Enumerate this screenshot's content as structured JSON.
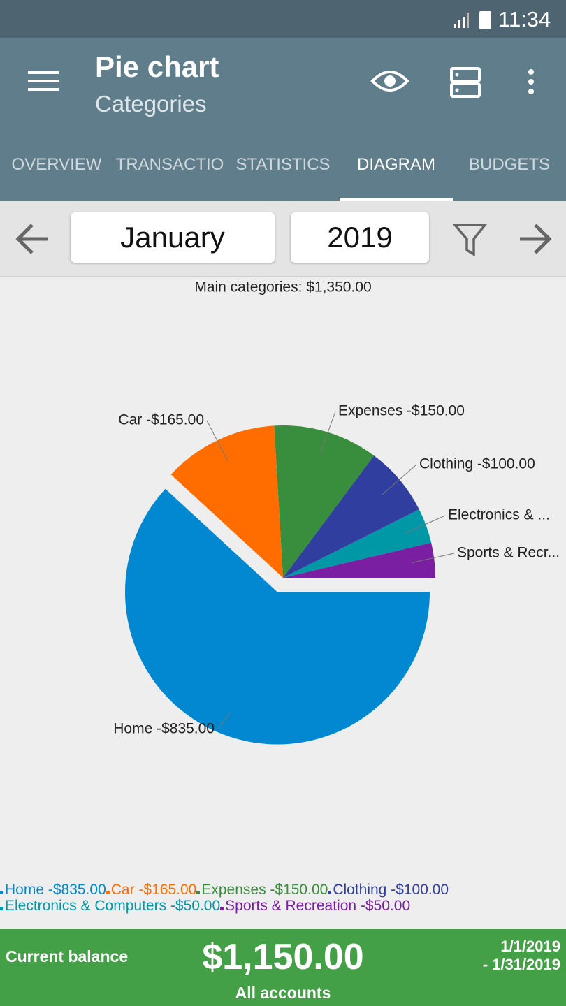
{
  "status_bar": {
    "time": "11:34"
  },
  "app_bar": {
    "title": "Pie chart",
    "subtitle": "Categories"
  },
  "tabs": [
    "OVERVIEW",
    "TRANSACTIO",
    "STATISTICS",
    "DIAGRAM",
    "BUDGETS"
  ],
  "period": {
    "month": "January",
    "year": "2019"
  },
  "chart_data": {
    "type": "pie",
    "title": "Main categories: $1,350.00",
    "categories": [
      "Home -$835.00",
      "Car -$165.00",
      "Expenses -$150.00",
      "Clothing -$100.00",
      "Electronics & Computers -$50.00",
      "Sports & Recreation -$50.00"
    ],
    "slice_labels": [
      "Home -$835.00",
      "Car -$165.00",
      "Expenses -$150.00",
      "Clothing -$100.00",
      "Electronics & ...",
      "Sports & Recr..."
    ],
    "values": [
      835,
      165,
      150,
      100,
      50,
      50
    ],
    "colors": [
      "#0288d1",
      "#ff6d00",
      "#388e3c",
      "#303f9f",
      "#0097a7",
      "#7b1fa2"
    ]
  },
  "footer": {
    "label": "Current balance",
    "balance": "$1,150.00",
    "accounts": "All accounts",
    "date_from": "1/1/2019",
    "date_to": "- 1/31/2019"
  }
}
